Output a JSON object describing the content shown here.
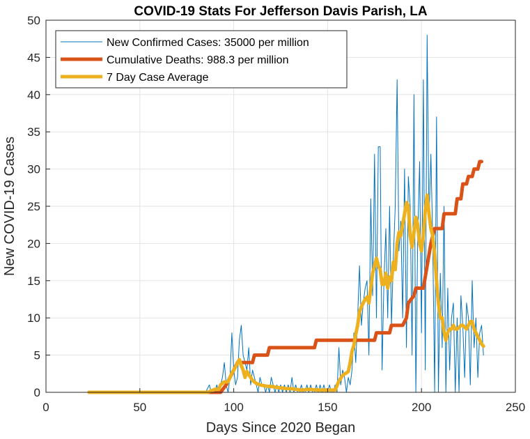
{
  "chart_data": {
    "type": "line",
    "title": "COVID-19 Stats For Jefferson Davis Parish, LA",
    "xlabel": "Days Since 2020 Began",
    "ylabel": "New COVID-19 Cases",
    "xlim": [
      0,
      250
    ],
    "ylim": [
      0,
      50
    ],
    "xticks": [
      0,
      50,
      100,
      150,
      200,
      250
    ],
    "yticks": [
      0,
      5,
      10,
      15,
      20,
      25,
      30,
      35,
      40,
      45,
      50
    ],
    "grid": true,
    "legend_position": "top-left",
    "series": [
      {
        "name": "New Confirmed Cases: 35000 per million",
        "color": "#0072BD",
        "points": [
          [
            23,
            0
          ],
          [
            85,
            0
          ],
          [
            87,
            1
          ],
          [
            88,
            0
          ],
          [
            90,
            0
          ],
          [
            91,
            1
          ],
          [
            92,
            0
          ],
          [
            93,
            1
          ],
          [
            94,
            2
          ],
          [
            95,
            4
          ],
          [
            96,
            1
          ],
          [
            97,
            0
          ],
          [
            98,
            2
          ],
          [
            99,
            8
          ],
          [
            100,
            3
          ],
          [
            101,
            1
          ],
          [
            102,
            2
          ],
          [
            103,
            7
          ],
          [
            104,
            9
          ],
          [
            105,
            5
          ],
          [
            106,
            4
          ],
          [
            107,
            3
          ],
          [
            108,
            6
          ],
          [
            109,
            1
          ],
          [
            110,
            3
          ],
          [
            111,
            2
          ],
          [
            112,
            1
          ],
          [
            113,
            0
          ],
          [
            114,
            2
          ],
          [
            115,
            1
          ],
          [
            116,
            1
          ],
          [
            117,
            0
          ],
          [
            118,
            1
          ],
          [
            119,
            0
          ],
          [
            120,
            2
          ],
          [
            121,
            1
          ],
          [
            122,
            0
          ],
          [
            123,
            1
          ],
          [
            124,
            0
          ],
          [
            125,
            1
          ],
          [
            126,
            0
          ],
          [
            127,
            1
          ],
          [
            128,
            0
          ],
          [
            129,
            1
          ],
          [
            130,
            0
          ],
          [
            131,
            2
          ],
          [
            132,
            0
          ],
          [
            133,
            1
          ],
          [
            134,
            0
          ],
          [
            135,
            0
          ],
          [
            136,
            1
          ],
          [
            137,
            0
          ],
          [
            138,
            0
          ],
          [
            139,
            1
          ],
          [
            140,
            0
          ],
          [
            141,
            1
          ],
          [
            142,
            0
          ],
          [
            143,
            0
          ],
          [
            144,
            1
          ],
          [
            145,
            0
          ],
          [
            146,
            1
          ],
          [
            147,
            0
          ],
          [
            148,
            1
          ],
          [
            149,
            0
          ],
          [
            150,
            0
          ],
          [
            151,
            1
          ],
          [
            152,
            0
          ],
          [
            153,
            0
          ],
          [
            154,
            1
          ],
          [
            155,
            0
          ],
          [
            156,
            6
          ],
          [
            157,
            1
          ],
          [
            158,
            3
          ],
          [
            159,
            2
          ],
          [
            160,
            0
          ],
          [
            161,
            2
          ],
          [
            162,
            1
          ],
          [
            163,
            3
          ],
          [
            164,
            8
          ],
          [
            165,
            4
          ],
          [
            166,
            10
          ],
          [
            167,
            17
          ],
          [
            168,
            9
          ],
          [
            169,
            12
          ],
          [
            170,
            14
          ],
          [
            171,
            15
          ],
          [
            172,
            5
          ],
          [
            173,
            26
          ],
          [
            174,
            13
          ],
          [
            175,
            32
          ],
          [
            176,
            10
          ],
          [
            177,
            33
          ],
          [
            178,
            33
          ],
          [
            179,
            3
          ],
          [
            180,
            15
          ],
          [
            181,
            22
          ],
          [
            182,
            10
          ],
          [
            183,
            25
          ],
          [
            184,
            9
          ],
          [
            185,
            18
          ],
          [
            186,
            25
          ],
          [
            187,
            42
          ],
          [
            188,
            19
          ],
          [
            189,
            23
          ],
          [
            190,
            10
          ],
          [
            191,
            30
          ],
          [
            192,
            6
          ],
          [
            193,
            29
          ],
          [
            194,
            25
          ],
          [
            195,
            5
          ],
          [
            196,
            40
          ],
          [
            197,
            0
          ],
          [
            198,
            21
          ],
          [
            199,
            31
          ],
          [
            200,
            8
          ],
          [
            201,
            42
          ],
          [
            202,
            3
          ],
          [
            203,
            48
          ],
          [
            204,
            23
          ],
          [
            205,
            32
          ],
          [
            206,
            20
          ],
          [
            207,
            0
          ],
          [
            208,
            37
          ],
          [
            209,
            0
          ],
          [
            210,
            16
          ],
          [
            211,
            6
          ],
          [
            212,
            25
          ],
          [
            213,
            0
          ],
          [
            214,
            14
          ],
          [
            215,
            3
          ],
          [
            216,
            10
          ],
          [
            217,
            12
          ],
          [
            218,
            0
          ],
          [
            219,
            10
          ],
          [
            220,
            0
          ],
          [
            221,
            13
          ],
          [
            222,
            9
          ],
          [
            223,
            2
          ],
          [
            224,
            12
          ],
          [
            225,
            10
          ],
          [
            226,
            1
          ],
          [
            227,
            15
          ],
          [
            228,
            6
          ],
          [
            229,
            10
          ],
          [
            230,
            2
          ],
          [
            231,
            8
          ],
          [
            232,
            9
          ],
          [
            233,
            5
          ]
        ]
      },
      {
        "name": "Cumulative Deaths: 988.3 per million",
        "color": "#D95319",
        "points": [
          [
            23,
            0
          ],
          [
            93,
            0
          ],
          [
            96,
            1
          ],
          [
            98,
            2
          ],
          [
            100,
            3
          ],
          [
            102,
            4
          ],
          [
            110,
            4
          ],
          [
            111,
            5
          ],
          [
            118,
            5
          ],
          [
            119,
            6
          ],
          [
            143,
            6
          ],
          [
            144,
            7
          ],
          [
            175,
            7
          ],
          [
            176,
            8
          ],
          [
            183,
            8
          ],
          [
            184,
            9
          ],
          [
            190,
            9
          ],
          [
            192,
            10
          ],
          [
            193,
            12
          ],
          [
            196,
            13
          ],
          [
            197,
            14
          ],
          [
            201,
            14
          ],
          [
            203,
            17
          ],
          [
            205,
            20
          ],
          [
            207,
            22
          ],
          [
            211,
            22
          ],
          [
            212,
            24
          ],
          [
            218,
            24
          ],
          [
            219,
            26
          ],
          [
            221,
            26
          ],
          [
            222,
            28
          ],
          [
            224,
            28
          ],
          [
            225,
            29
          ],
          [
            227,
            29
          ],
          [
            228,
            30
          ],
          [
            230,
            30
          ],
          [
            231,
            31
          ],
          [
            232,
            31
          ]
        ]
      },
      {
        "name": "7 Day Case Average",
        "color": "#EDB120",
        "points": [
          [
            23,
            0
          ],
          [
            86,
            0
          ],
          [
            88,
            0.2
          ],
          [
            90,
            0.4
          ],
          [
            92,
            0.4
          ],
          [
            93,
            1.0
          ],
          [
            95,
            1.4
          ],
          [
            97,
            1.4
          ],
          [
            99,
            2.6
          ],
          [
            100,
            3.0
          ],
          [
            101,
            3.4
          ],
          [
            102,
            4.0
          ],
          [
            103,
            4.4
          ],
          [
            104,
            3.6
          ],
          [
            105,
            3.0
          ],
          [
            106,
            2.0
          ],
          [
            107,
            2.8
          ],
          [
            108,
            2.4
          ],
          [
            109,
            2.0
          ],
          [
            110,
            1.6
          ],
          [
            111,
            1.4
          ],
          [
            112,
            1.2
          ],
          [
            114,
            1.0
          ],
          [
            116,
            0.9
          ],
          [
            118,
            0.8
          ],
          [
            120,
            0.8
          ],
          [
            122,
            0.7
          ],
          [
            125,
            0.6
          ],
          [
            128,
            0.5
          ],
          [
            130,
            0.5
          ],
          [
            133,
            0.4
          ],
          [
            136,
            0.3
          ],
          [
            140,
            0.4
          ],
          [
            145,
            0.3
          ],
          [
            150,
            0.3
          ],
          [
            154,
            0.3
          ],
          [
            156,
            1.5
          ],
          [
            158,
            2.3
          ],
          [
            160,
            2.6
          ],
          [
            161,
            2.8
          ],
          [
            162,
            4.0
          ],
          [
            163,
            5.5
          ],
          [
            164,
            6.3
          ],
          [
            165,
            7.8
          ],
          [
            166,
            9.0
          ],
          [
            167,
            10.8
          ],
          [
            168,
            11.5
          ],
          [
            169,
            12.0
          ],
          [
            170,
            12.5
          ],
          [
            171,
            12.8
          ],
          [
            172,
            12.0
          ],
          [
            173,
            14.0
          ],
          [
            174,
            16.0
          ],
          [
            175,
            17.0
          ],
          [
            176,
            18.0
          ],
          [
            177,
            17.0
          ],
          [
            178,
            16.5
          ],
          [
            179,
            14.5
          ],
          [
            180,
            14.5
          ],
          [
            181,
            16.0
          ],
          [
            182,
            14.0
          ],
          [
            183,
            15.5
          ],
          [
            184,
            15.0
          ],
          [
            185,
            17.5
          ],
          [
            186,
            16.5
          ],
          [
            187,
            20.0
          ],
          [
            188,
            21.5
          ],
          [
            189,
            21.0
          ],
          [
            190,
            22.5
          ],
          [
            191,
            24.0
          ],
          [
            192,
            25.5
          ],
          [
            193,
            25.0
          ],
          [
            194,
            21.0
          ],
          [
            195,
            19.5
          ],
          [
            196,
            21.5
          ],
          [
            197,
            23.5
          ],
          [
            198,
            22.5
          ],
          [
            199,
            20.0
          ],
          [
            200,
            19.0
          ],
          [
            201,
            21.0
          ],
          [
            202,
            24.5
          ],
          [
            203,
            26.5
          ],
          [
            204,
            24.0
          ],
          [
            205,
            22.0
          ],
          [
            206,
            21.0
          ],
          [
            207,
            18.5
          ],
          [
            208,
            15.0
          ],
          [
            209,
            12.0
          ],
          [
            210,
            10.0
          ],
          [
            211,
            10.0
          ],
          [
            212,
            8.0
          ],
          [
            213,
            7.0
          ],
          [
            214,
            8.0
          ],
          [
            215,
            8.5
          ],
          [
            216,
            8.5
          ],
          [
            217,
            9.0
          ],
          [
            218,
            8.5
          ],
          [
            219,
            8.5
          ],
          [
            220,
            8.7
          ],
          [
            221,
            9.0
          ],
          [
            222,
            9.0
          ],
          [
            224,
            8.5
          ],
          [
            225,
            9.0
          ],
          [
            226,
            9.5
          ],
          [
            227,
            9.5
          ],
          [
            228,
            8.5
          ],
          [
            229,
            8.0
          ],
          [
            230,
            7.5
          ],
          [
            231,
            7.0
          ],
          [
            232,
            6.5
          ],
          [
            233,
            6.2
          ]
        ]
      }
    ]
  }
}
